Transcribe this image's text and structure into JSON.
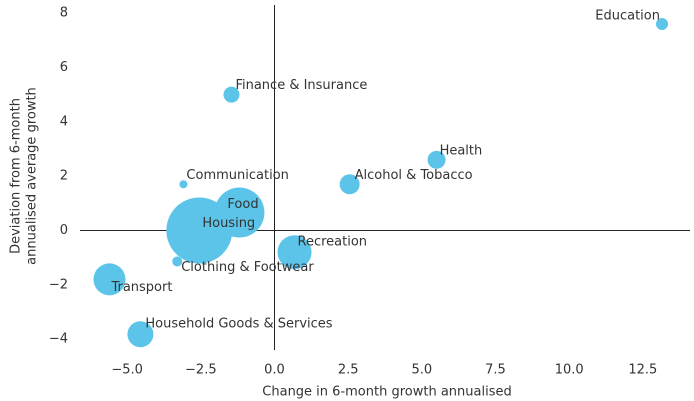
{
  "chart_data": {
    "type": "scatter",
    "xlabel": "Change in 6-month growth annualised",
    "ylabel": [
      "Deviation from 6-month",
      "annualised average growth"
    ],
    "color": "#5bc4e8",
    "categories": [
      "Education",
      "Finance & Insurance",
      "Health",
      "Alcohol & Tobacco",
      "Communication",
      "Food",
      "Housing",
      "Recreation",
      "Clothing & Footwear",
      "Transport",
      "Household Goods & Services"
    ],
    "x": [
      13.15,
      -1.46,
      5.5,
      2.55,
      -3.09,
      -1.19,
      -2.55,
      0.68,
      -3.3,
      -5.6,
      -4.55
    ],
    "values": [
      7.6,
      5.0,
      2.6,
      1.7,
      1.7,
      0.66,
      0.0,
      -0.8,
      -1.14,
      -1.8,
      -3.82
    ],
    "sizes": [
      36,
      64,
      81,
      100,
      16,
      625,
      1089,
      289,
      25,
      256,
      169
    ],
    "xlim": [
      -6.6,
      14.1
    ],
    "ylim": [
      -4.4,
      8.3
    ],
    "xticks": [
      {
        "value": -5,
        "label": "−5.0"
      },
      {
        "value": -2.5,
        "label": "−2.5"
      },
      {
        "value": 0,
        "label": "0.0"
      },
      {
        "value": 2.5,
        "label": "2.5"
      },
      {
        "value": 5,
        "label": "5.0"
      },
      {
        "value": 7.5,
        "label": "7.5"
      },
      {
        "value": 10,
        "label": "10.0"
      },
      {
        "value": 12.5,
        "label": "12.5"
      }
    ],
    "yticks": [
      8,
      6,
      4,
      2,
      0,
      {
        "value": -2,
        "label": "−2"
      },
      {
        "value": -4,
        "label": "−4"
      }
    ]
  }
}
